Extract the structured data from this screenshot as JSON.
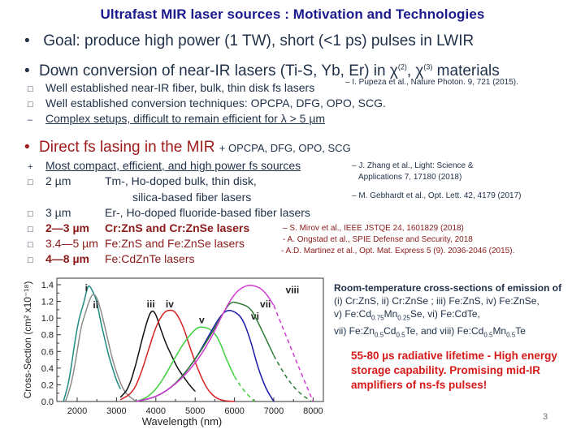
{
  "slide": {
    "title": "Ultrafast MIR laser sources : Motivation and Technologies",
    "page_number": "3",
    "bullets": {
      "goal": {
        "bullet": "•",
        "text": "Goal: produce high power (1 TW), short (<1 ps) pulses in LWIR"
      },
      "down_conversion": {
        "bullet": "•",
        "text_before": "Down conversion of near-IR lasers (Ti-S, Yb, Er) in ",
        "chi": "χ",
        "sup2": "(2)",
        "sep": ", ",
        "sup3": "(3)",
        "text_after": " materials",
        "reference": "– I. Pupeza et al., Nature Photon. 9, 721 (2015).",
        "items": [
          {
            "mark": "□",
            "text": "Well established near-IR fiber, bulk, thin disk fs lasers"
          },
          {
            "mark": "□",
            "text": "Well established conversion techniques: OPCPA, DFG, OPO, SCG."
          },
          {
            "mark": "–",
            "text": "Complex setups, difficult to remain efficient for λ > 5 µm"
          }
        ]
      },
      "direct": {
        "bullet": "•",
        "text": "Direct fs lasing in the MIR",
        "suffix": "+ OPCPA, DFG, OPO, SCG",
        "items": [
          {
            "mark": "+",
            "text": "Most compact, efficient, and high power fs sources"
          },
          {
            "mark": "□",
            "range": "2 µm",
            "text": "Tm-, Ho-doped bulk, thin disk,",
            "text2": "silica-based fiber lasers"
          },
          {
            "mark": "□",
            "range": "3 µm",
            "text": "Er-, Ho-doped fluoride-based fiber lasers"
          },
          {
            "mark": "□",
            "range": "2—3 µm",
            "text": "Cr:ZnS and Cr:ZnSe lasers"
          },
          {
            "mark": "□",
            "range": "3.4—5 µm",
            "text": "Fe:ZnS and Fe:ZnSe lasers"
          },
          {
            "mark": "□",
            "range": "4—8 µm",
            "text": "Fe:CdZnTe lasers"
          }
        ],
        "references_a": [
          "– J. Zhang et al., Light: Science &",
          "Applications 7, 17180 (2018)",
          "– M. Gebhardt et al., Opt. Lett. 42, 4179 (2017)"
        ],
        "references_b": [
          "– S. Mirov et al., IEEE JSTQE 24, 1601829 (2018)",
          "-  A. Ongstad et al., SPIE Defense and Security, 2018",
          "- A.D. Martinez et al., Opt. Mat. Express 5 (9). 2036-2046 (2015)."
        ]
      }
    },
    "caption": {
      "line1": "Room-temperature cross-sections of emission of",
      "line2": "(i) Cr:ZnS, ii) Cr:ZnSe ; iii) Fe:ZnS, iv) Fe:ZnSe,",
      "line3a": "v) Fe:Cd",
      "line3_s1": "0.75",
      "line3b": "Mn",
      "line3_s2": "0.25",
      "line3c": "Se, vi) Fe:CdTe,",
      "line4a": "vii) Fe:Zn",
      "line4_s1": "0.5",
      "line4b": "Cd",
      "line4_s2": "0.5",
      "line4c": "Te, and viii) Fe:Cd",
      "line4_s3": "0.5",
      "line4d": "Mn",
      "line4_s4": "0.5",
      "line4e": "Te"
    },
    "highlight": "55-80 µs radiative lifetime - High energy storage capability. Promising mid-IR amplifiers of ns-fs pulses!"
  },
  "chart_data": {
    "type": "line",
    "title": "",
    "xlabel": "Wavelength (nm)",
    "ylabel": "Cross-Section (cm² x10⁻¹⁸)",
    "xlim": [
      1500,
      8300
    ],
    "ylim": [
      0,
      1.45
    ],
    "xticks": [
      2000,
      3000,
      4000,
      5000,
      6000,
      7000,
      8000
    ],
    "yticks": [
      0.0,
      0.2,
      0.4,
      0.6,
      0.8,
      1.0,
      1.2,
      1.4
    ],
    "grid": false,
    "series": [
      {
        "name": "i",
        "material": "Cr:ZnS",
        "color": "#1f8a84",
        "dashed_after": null,
        "x": [
          1650,
          1800,
          1950,
          2050,
          2150,
          2250,
          2300,
          2400,
          2500,
          2600,
          2700,
          2800,
          2900,
          3000,
          3100
        ],
        "y": [
          0.0,
          0.25,
          0.75,
          1.0,
          1.15,
          1.35,
          1.4,
          1.32,
          1.2,
          0.95,
          0.75,
          0.55,
          0.4,
          0.25,
          0.15
        ]
      },
      {
        "name": "ii",
        "material": "Cr:ZnSe",
        "color": "#8c8c8c",
        "dashed_after": null,
        "x": [
          1700,
          1850,
          2000,
          2100,
          2200,
          2300,
          2400,
          2500,
          2600,
          2700,
          2800,
          2900,
          3000,
          3100,
          3200,
          3350,
          3500
        ],
        "y": [
          0.0,
          0.2,
          0.6,
          0.9,
          1.05,
          1.2,
          1.3,
          1.25,
          1.1,
          0.9,
          0.7,
          0.5,
          0.35,
          0.22,
          0.12,
          0.05,
          0.0
        ]
      },
      {
        "name": "iii",
        "material": "Fe:ZnS",
        "color": "#111111",
        "dashed_after": null,
        "x": [
          3100,
          3300,
          3500,
          3650,
          3800,
          3900,
          4000,
          4100,
          4250,
          4400,
          4550,
          4700,
          4850,
          5000
        ],
        "y": [
          0.05,
          0.15,
          0.45,
          0.75,
          1.0,
          1.1,
          1.05,
          0.9,
          0.7,
          0.55,
          0.4,
          0.3,
          0.2,
          0.12
        ]
      },
      {
        "name": "iv",
        "material": "Fe:ZnSe",
        "color": "#d42020",
        "dashed_after": null,
        "x": [
          3100,
          3400,
          3600,
          3800,
          4000,
          4200,
          4350,
          4500,
          4700,
          4900,
          5100,
          5300,
          5500,
          5700,
          6000
        ],
        "y": [
          0.02,
          0.1,
          0.3,
          0.6,
          0.9,
          1.07,
          1.1,
          1.08,
          0.9,
          0.6,
          0.35,
          0.15,
          0.05,
          0.01,
          0.0
        ]
      },
      {
        "name": "v",
        "material": "Fe:Cd0.75Mn0.25Se",
        "color": "#3cd03c",
        "dashed_after": 6000,
        "x": [
          3500,
          3800,
          4100,
          4400,
          4700,
          5000,
          5150,
          5400,
          5600,
          5800,
          6000,
          6200,
          6500
        ],
        "y": [
          0.0,
          0.05,
          0.2,
          0.45,
          0.7,
          0.87,
          0.9,
          0.87,
          0.75,
          0.5,
          0.3,
          0.15,
          0.0
        ]
      },
      {
        "name": "vi",
        "material": "Fe:CdTe",
        "color": "#1a1aa8",
        "dashed_after": null,
        "x": [
          3500,
          4000,
          4500,
          5000,
          5300,
          5600,
          5800,
          6000,
          6200,
          6400,
          6600,
          6800,
          7000
        ],
        "y": [
          0.0,
          0.05,
          0.2,
          0.5,
          0.75,
          1.0,
          1.1,
          1.08,
          1.0,
          0.75,
          0.4,
          0.15,
          0.0
        ]
      },
      {
        "name": "vii",
        "material": "Fe:Zn0.5Cd0.5Te",
        "color": "#2a7a34",
        "dashed_after": 7000,
        "x": [
          3500,
          4000,
          4500,
          5000,
          5400,
          5700,
          5900,
          6100,
          6400,
          6600,
          6800,
          7000,
          7300,
          7600,
          7950
        ],
        "y": [
          0.0,
          0.05,
          0.2,
          0.5,
          0.8,
          1.05,
          1.2,
          1.18,
          1.13,
          0.95,
          0.75,
          0.55,
          0.3,
          0.12,
          0.0
        ]
      },
      {
        "name": "viii",
        "material": "Fe:Cd0.5Mn0.5Te",
        "color": "#d43ad4",
        "dashed_after": 7000,
        "x": [
          3500,
          4000,
          4500,
          5000,
          5400,
          5700,
          6000,
          6300,
          6600,
          6800,
          7000,
          7300,
          7600,
          8000
        ],
        "y": [
          0.0,
          0.05,
          0.2,
          0.45,
          0.75,
          1.05,
          1.3,
          1.4,
          1.38,
          1.3,
          1.15,
          0.8,
          0.45,
          0.0
        ]
      }
    ]
  }
}
